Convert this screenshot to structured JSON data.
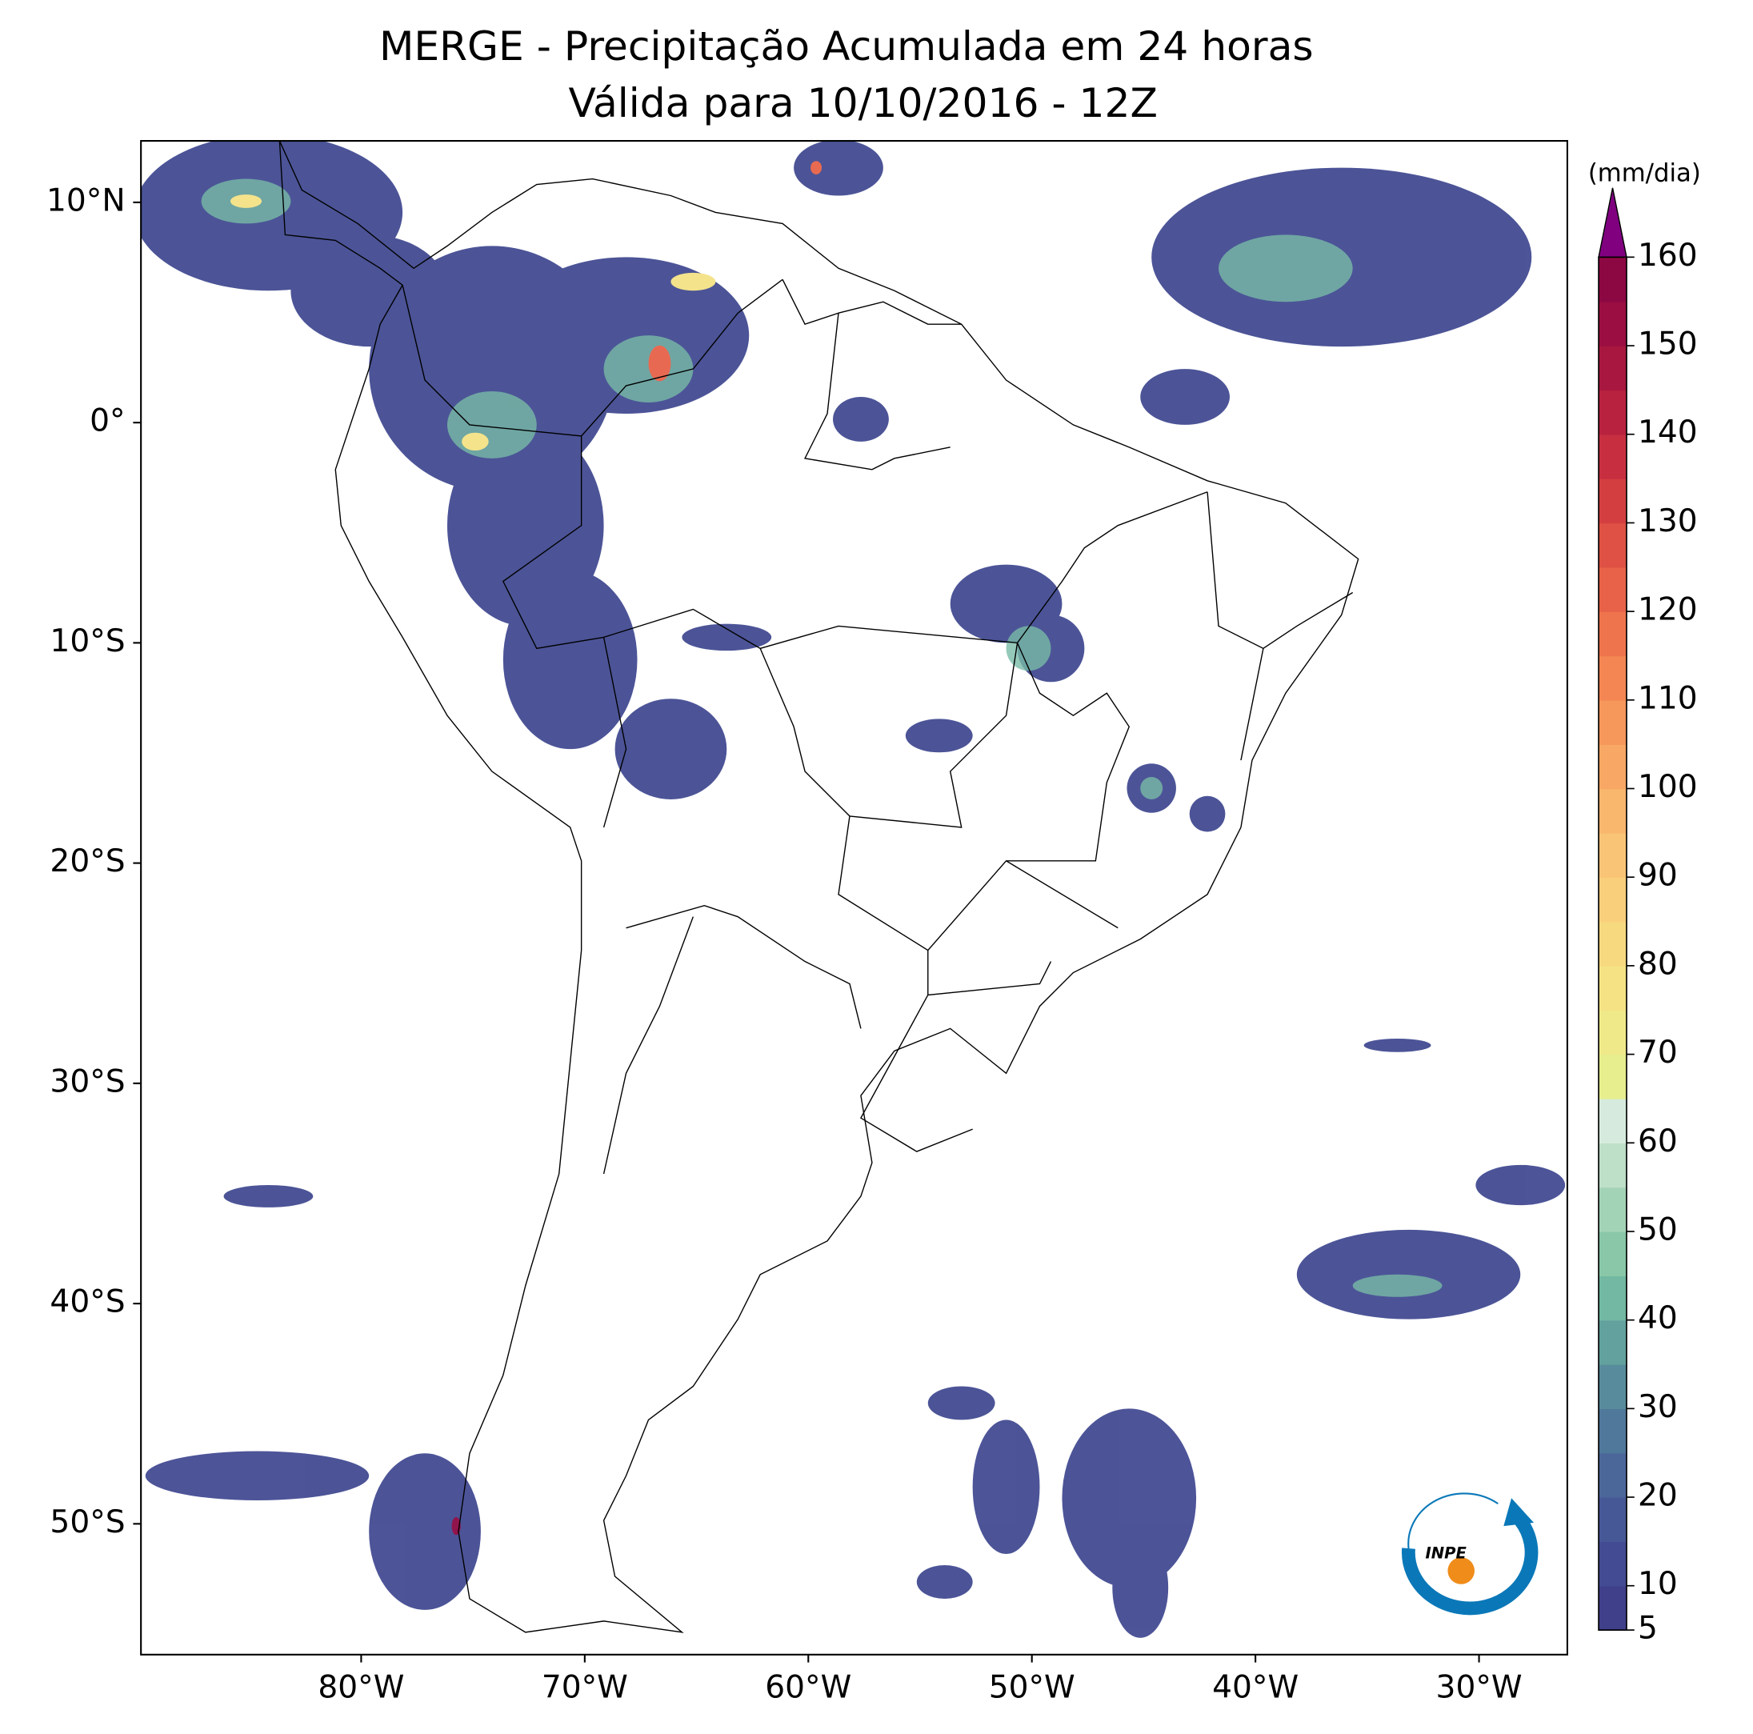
{
  "title": [
    "MERGE - Precipitação Acumulada em 24 horas",
    "Válida para 10/10/2016 - 12Z"
  ],
  "map": {
    "lat_ticks": [
      {
        "value": 10,
        "label": "10°N"
      },
      {
        "value": 0,
        "label": "0°"
      },
      {
        "value": -10,
        "label": "10°S"
      },
      {
        "value": -20,
        "label": "20°S"
      },
      {
        "value": -30,
        "label": "30°S"
      },
      {
        "value": -40,
        "label": "40°S"
      },
      {
        "value": -50,
        "label": "50°S"
      }
    ],
    "lon_ticks": [
      {
        "value": -80,
        "label": "80°W"
      },
      {
        "value": -70,
        "label": "70°W"
      },
      {
        "value": -60,
        "label": "60°W"
      },
      {
        "value": -50,
        "label": "50°W"
      },
      {
        "value": -40,
        "label": "40°W"
      },
      {
        "value": -30,
        "label": "30°W"
      }
    ]
  },
  "colorbar": {
    "unit": "(mm/dia)",
    "ticks": [
      5,
      10,
      20,
      30,
      40,
      50,
      60,
      70,
      80,
      90,
      100,
      110,
      120,
      130,
      140,
      150,
      160
    ],
    "colors": [
      "#3f3f8a",
      "#434b92",
      "#475896",
      "#4b6799",
      "#50789b",
      "#588c9c",
      "#62a19e",
      "#72b8a2",
      "#89c7a8",
      "#a3d3b6",
      "#bedfc8",
      "#d6ebdd",
      "#e6ee8e",
      "#efe98a",
      "#f4e285",
      "#f7d980",
      "#f9cf7c",
      "#f9c476",
      "#f9b66d",
      "#f8a764",
      "#f6975b",
      "#f38653",
      "#ee744d",
      "#e76248",
      "#de5144",
      "#d33f41",
      "#c72f40",
      "#b8223f",
      "#a8173f",
      "#9a0e41",
      "#8c0843"
    ],
    "extend_color": "#800080"
  },
  "logo": "INPE"
}
